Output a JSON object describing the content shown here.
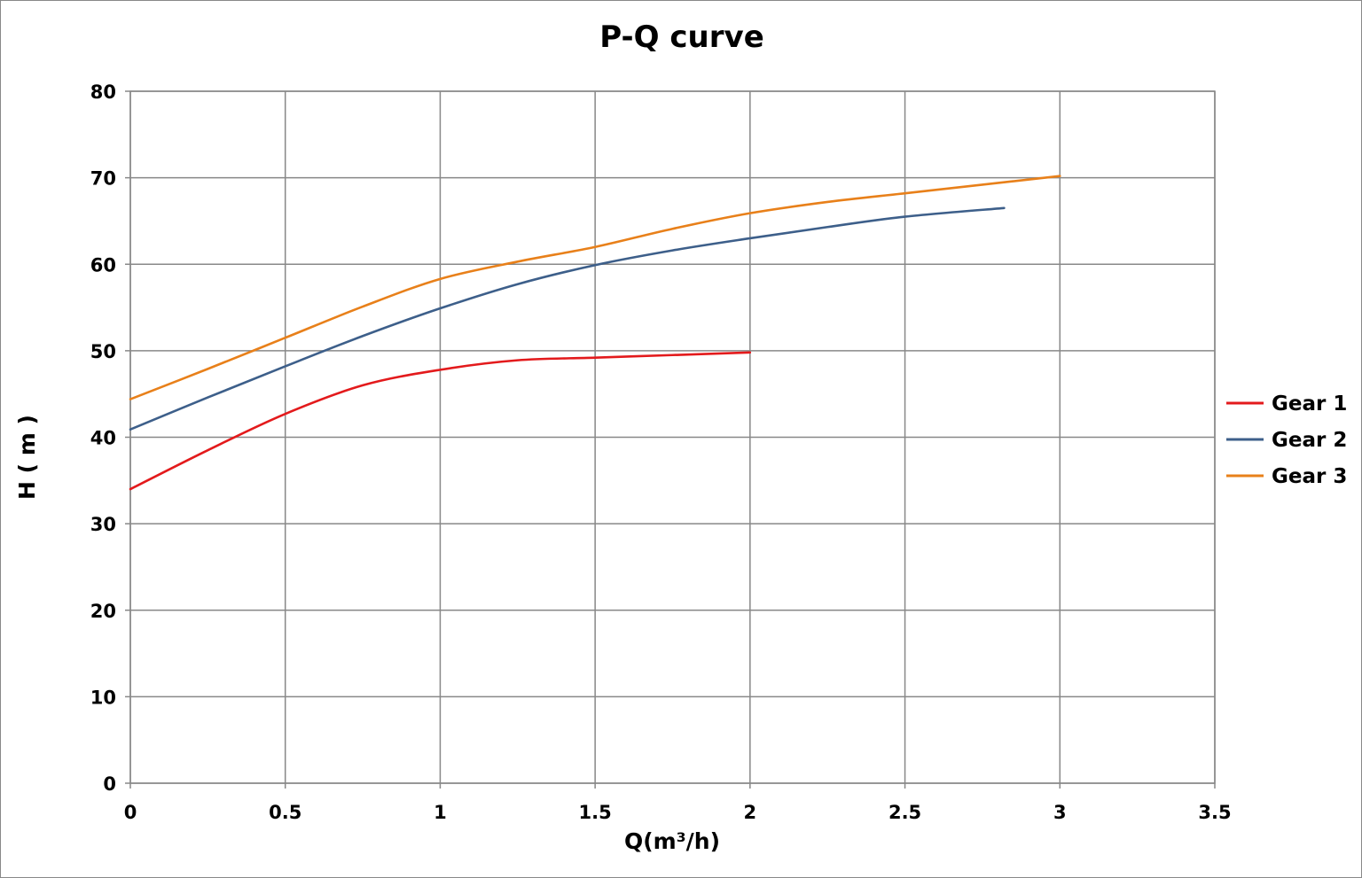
{
  "chart_data": {
    "type": "line",
    "title": "P-Q  curve",
    "xlabel": "Q(m³/h)",
    "ylabel": "H ( m )",
    "xlim": [
      0,
      3.5
    ],
    "ylim": [
      0,
      80
    ],
    "x_ticks": [
      0,
      0.5,
      1,
      1.5,
      2,
      2.5,
      3,
      3.5
    ],
    "y_ticks": [
      0,
      10,
      20,
      30,
      40,
      50,
      60,
      70,
      80
    ],
    "x_tick_labels": [
      "0",
      "0.5",
      "1",
      "1.5",
      "2",
      "2.5",
      "3",
      "3.5"
    ],
    "y_tick_labels": [
      "0",
      "10",
      "20",
      "30",
      "40",
      "50",
      "60",
      "70",
      "80"
    ],
    "grid": true,
    "legend_position": "right",
    "series": [
      {
        "name": "Gear 1",
        "color": "#e31a1c",
        "points": [
          [
            0,
            34.0
          ],
          [
            0.25,
            38.5
          ],
          [
            0.5,
            42.7
          ],
          [
            0.75,
            46.0
          ],
          [
            1.0,
            47.8
          ],
          [
            1.25,
            48.9
          ],
          [
            1.5,
            49.2
          ],
          [
            1.75,
            49.5
          ],
          [
            2.0,
            49.8
          ]
        ]
      },
      {
        "name": "Gear 2",
        "color": "#3d5f8a",
        "points": [
          [
            0,
            40.9
          ],
          [
            0.25,
            44.6
          ],
          [
            0.5,
            48.2
          ],
          [
            0.75,
            51.7
          ],
          [
            1.0,
            54.9
          ],
          [
            1.25,
            57.7
          ],
          [
            1.5,
            59.9
          ],
          [
            1.75,
            61.6
          ],
          [
            2.0,
            63.0
          ],
          [
            2.25,
            64.3
          ],
          [
            2.5,
            65.5
          ],
          [
            2.82,
            66.5
          ]
        ]
      },
      {
        "name": "Gear 3",
        "color": "#e8801a",
        "points": [
          [
            0,
            44.4
          ],
          [
            0.25,
            47.9
          ],
          [
            0.5,
            51.5
          ],
          [
            0.75,
            55.1
          ],
          [
            1.0,
            58.3
          ],
          [
            1.25,
            60.3
          ],
          [
            1.5,
            62.0
          ],
          [
            1.75,
            64.1
          ],
          [
            2.0,
            65.9
          ],
          [
            2.25,
            67.2
          ],
          [
            2.5,
            68.2
          ],
          [
            2.75,
            69.2
          ],
          [
            3.0,
            70.2
          ]
        ]
      }
    ]
  }
}
